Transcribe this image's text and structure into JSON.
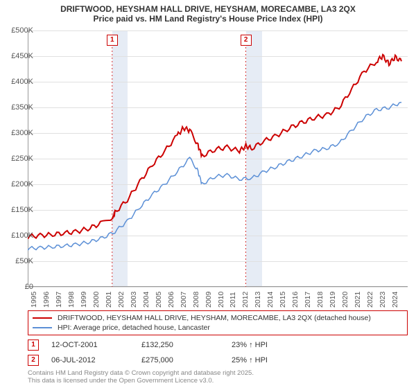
{
  "title_line1": "DRIFTWOOD, HEYSHAM HALL DRIVE, HEYSHAM, MORECAMBE, LA3 2QX",
  "title_line2": "Price paid vs. HM Land Registry's House Price Index (HPI)",
  "chart": {
    "type": "line",
    "background_color": "#ffffff",
    "grid_color": "#e0e0e0",
    "shade_color": "#e6ecf5",
    "x_years": [
      1995,
      1996,
      1997,
      1998,
      1999,
      2000,
      2001,
      2002,
      2003,
      2004,
      2005,
      2006,
      2007,
      2008,
      2009,
      2010,
      2011,
      2012,
      2013,
      2014,
      2015,
      2016,
      2017,
      2018,
      2019,
      2020,
      2021,
      2022,
      2023,
      2024
    ],
    "x_range": [
      1995,
      2025.5
    ],
    "ylim": [
      0,
      500000
    ],
    "ytick_step": 50000,
    "y_labels": [
      "£0",
      "£50K",
      "£100K",
      "£150K",
      "£200K",
      "£250K",
      "£300K",
      "£350K",
      "£400K",
      "£450K",
      "£500K"
    ],
    "series": [
      {
        "name": "HPI: Average price, detached house, Lancaster",
        "color": "#5b8fd6",
        "width": 1.5,
        "points": [
          [
            1995,
            75000
          ],
          [
            1996,
            76000
          ],
          [
            1997,
            78000
          ],
          [
            1998,
            80000
          ],
          [
            1999,
            83000
          ],
          [
            2000,
            88000
          ],
          [
            2001,
            95000
          ],
          [
            2002,
            108000
          ],
          [
            2003,
            128000
          ],
          [
            2004,
            155000
          ],
          [
            2005,
            180000
          ],
          [
            2006,
            200000
          ],
          [
            2007,
            225000
          ],
          [
            2008,
            250000
          ],
          [
            2008.6,
            230000
          ],
          [
            2009,
            200000
          ],
          [
            2010,
            215000
          ],
          [
            2011,
            218000
          ],
          [
            2012,
            210000
          ],
          [
            2013,
            212000
          ],
          [
            2014,
            225000
          ],
          [
            2015,
            235000
          ],
          [
            2016,
            245000
          ],
          [
            2017,
            255000
          ],
          [
            2018,
            265000
          ],
          [
            2019,
            270000
          ],
          [
            2020,
            280000
          ],
          [
            2021,
            305000
          ],
          [
            2022,
            330000
          ],
          [
            2023,
            345000
          ],
          [
            2024,
            350000
          ],
          [
            2025,
            360000
          ]
        ]
      },
      {
        "name": "DRIFTWOOD, HEYSHAM HALL DRIVE, HEYSHAM, MORECAMBE, LA3 2QX (detached house)",
        "color": "#cc0000",
        "width": 2,
        "points": [
          [
            1995,
            98000
          ],
          [
            1996,
            100000
          ],
          [
            1997,
            102000
          ],
          [
            1998,
            105000
          ],
          [
            1999,
            108000
          ],
          [
            2000,
            115000
          ],
          [
            2001,
            125000
          ],
          [
            2001.78,
            132250
          ],
          [
            2002,
            145000
          ],
          [
            2003,
            170000
          ],
          [
            2004,
            205000
          ],
          [
            2005,
            238000
          ],
          [
            2006,
            265000
          ],
          [
            2007,
            295000
          ],
          [
            2007.5,
            310000
          ],
          [
            2008,
            305000
          ],
          [
            2008.6,
            280000
          ],
          [
            2009,
            255000
          ],
          [
            2010,
            268000
          ],
          [
            2011,
            272000
          ],
          [
            2012,
            265000
          ],
          [
            2012.51,
            275000
          ],
          [
            2013,
            270000
          ],
          [
            2014,
            285000
          ],
          [
            2015,
            295000
          ],
          [
            2016,
            310000
          ],
          [
            2017,
            320000
          ],
          [
            2018,
            330000
          ],
          [
            2019,
            335000
          ],
          [
            2020,
            350000
          ],
          [
            2021,
            385000
          ],
          [
            2022,
            420000
          ],
          [
            2023,
            440000
          ],
          [
            2023.5,
            450000
          ],
          [
            2024,
            435000
          ],
          [
            2024.5,
            448000
          ],
          [
            2025,
            440000
          ]
        ]
      }
    ],
    "markers": [
      {
        "label": "1",
        "x": 2001.78,
        "date": "12-OCT-2001",
        "price": "£132,250",
        "delta": "23% ↑ HPI"
      },
      {
        "label": "2",
        "x": 2012.51,
        "date": "06-JUL-2012",
        "price": "£275,000",
        "delta": "25% ↑ HPI"
      }
    ],
    "shade_ranges": [
      [
        2001.78,
        2003.0
      ],
      [
        2012.51,
        2013.8
      ]
    ]
  },
  "legend": {
    "items": [
      {
        "color": "#cc0000",
        "label": "DRIFTWOOD, HEYSHAM HALL DRIVE, HEYSHAM, MORECAMBE, LA3 2QX (detached house)"
      },
      {
        "color": "#5b8fd6",
        "label": "HPI: Average price, detached house, Lancaster"
      }
    ]
  },
  "credits_line1": "Contains HM Land Registry data © Crown copyright and database right 2025.",
  "credits_line2": "This data is licensed under the Open Government Licence v3.0."
}
